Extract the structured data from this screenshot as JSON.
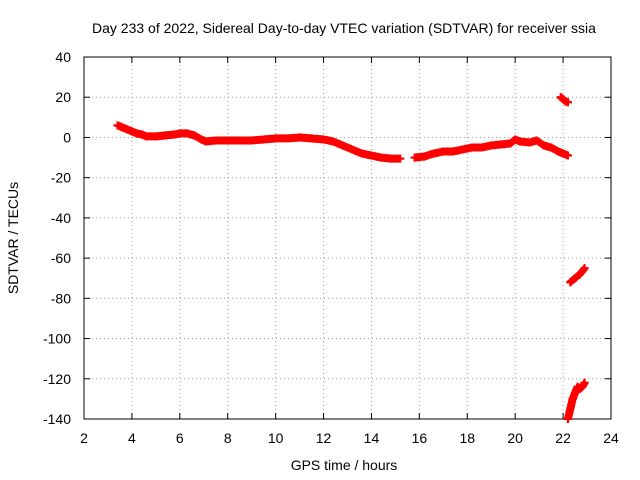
{
  "chart_data": {
    "type": "scatter",
    "title": "Day 233 of 2022, Sidereal Day-to-day VTEC variation (SDTVAR) for receiver ssia",
    "xlabel": "GPS time / hours",
    "ylabel": "SDTVAR / TECUs",
    "xlim": [
      2,
      24
    ],
    "ylim": [
      -140,
      40
    ],
    "x_ticks": [
      2,
      4,
      6,
      8,
      10,
      12,
      14,
      16,
      18,
      20,
      22,
      24
    ],
    "y_ticks": [
      40,
      20,
      0,
      -20,
      -40,
      -60,
      -80,
      -100,
      -120,
      -140
    ],
    "grid": true,
    "marker": "plus",
    "series": [
      {
        "name": "SDTVAR",
        "color": "#ff0000",
        "segments": [
          {
            "x": [
              3.4,
              3.6,
              3.8,
              4.0,
              4.2,
              4.4,
              4.6,
              5.0,
              5.4,
              5.8,
              6.0,
              6.3,
              6.6,
              6.9,
              7.1,
              7.5,
              8.0,
              8.5,
              9.0,
              9.5,
              10.0,
              10.5,
              11.0,
              11.5,
              12.0,
              12.4,
              12.8,
              13.2,
              13.6,
              14.0,
              14.4,
              14.8,
              15.2
            ],
            "y": [
              6,
              5,
              4,
              3,
              2,
              1.5,
              0.5,
              0.5,
              1,
              1.5,
              2,
              2,
              1,
              -1,
              -2,
              -1.5,
              -1.5,
              -1.5,
              -1.5,
              -1,
              -0.5,
              -0.5,
              0,
              -0.5,
              -1,
              -2,
              -4,
              -6,
              -8,
              -9,
              -10,
              -10.5,
              -10.5
            ]
          },
          {
            "x": [
              15.8,
              16.2,
              16.6,
              17.0,
              17.4,
              17.8,
              18.2,
              18.6,
              19.0,
              19.4,
              19.8,
              20.0,
              20.2,
              20.6,
              20.9,
              21.2,
              21.5,
              21.8,
              22.0,
              22.2
            ],
            "y": [
              -10,
              -9.5,
              -8,
              -7,
              -7,
              -6,
              -5,
              -5,
              -4,
              -3.5,
              -3,
              -1,
              -2,
              -2.5,
              -1.5,
              -4,
              -5,
              -7,
              -8,
              -9
            ]
          },
          {
            "x": [
              21.9,
              22.0,
              22.1,
              22.2
            ],
            "y": [
              20,
              19,
              18,
              17.5
            ]
          },
          {
            "x": [
              22.3,
              22.5,
              22.7,
              22.9
            ],
            "y": [
              -72,
              -70,
              -68,
              -65
            ]
          },
          {
            "x": [
              22.2,
              22.3,
              22.4,
              22.5,
              22.6,
              22.7,
              22.8,
              22.9
            ],
            "y": [
              -140,
              -135,
              -130,
              -127,
              -124,
              -125,
              -124,
              -122
            ]
          }
        ]
      }
    ]
  }
}
